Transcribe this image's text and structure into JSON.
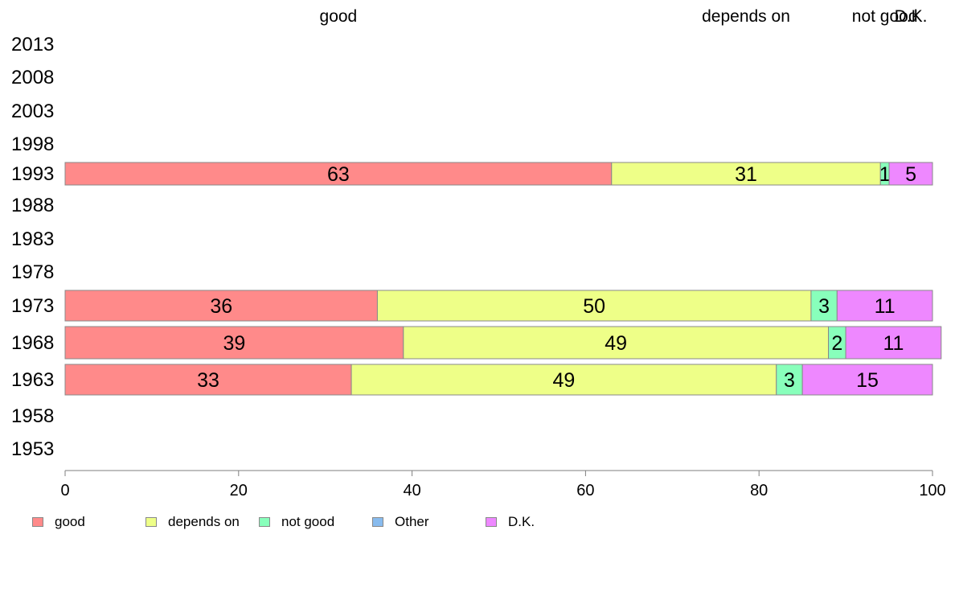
{
  "chart_data": {
    "type": "bar",
    "orientation": "horizontal",
    "stacked": true,
    "categories": [
      "2013",
      "2008",
      "2003",
      "1998",
      "1993",
      "1988",
      "1983",
      "1978",
      "1973",
      "1968",
      "1963",
      "1958",
      "1953"
    ],
    "series": [
      {
        "name": "good",
        "color": "#ff8a8a",
        "values": [
          null,
          null,
          null,
          null,
          63,
          null,
          null,
          null,
          36,
          39,
          33,
          null,
          null
        ]
      },
      {
        "name": "depends on",
        "color": "#eeff88",
        "values": [
          null,
          null,
          null,
          null,
          31,
          null,
          null,
          null,
          50,
          49,
          49,
          null,
          null
        ]
      },
      {
        "name": "not good",
        "color": "#88ffbb",
        "values": [
          null,
          null,
          null,
          null,
          1,
          null,
          null,
          null,
          3,
          2,
          3,
          null,
          null
        ]
      },
      {
        "name": "Other",
        "color": "#88bbee",
        "values": [
          null,
          null,
          null,
          null,
          0,
          null,
          null,
          null,
          0,
          0,
          0,
          null,
          null
        ]
      },
      {
        "name": "D.K.",
        "color": "#ee88ff",
        "values": [
          null,
          null,
          null,
          null,
          5,
          null,
          null,
          null,
          11,
          11,
          15,
          null,
          null
        ]
      }
    ],
    "top_labels": [
      "good",
      "depends on",
      "not good",
      "D.K."
    ],
    "xlim": [
      0,
      100
    ],
    "xticks": [
      "0",
      "20",
      "40",
      "60",
      "80",
      "100"
    ],
    "grid": false,
    "legend_position": "bottom"
  }
}
